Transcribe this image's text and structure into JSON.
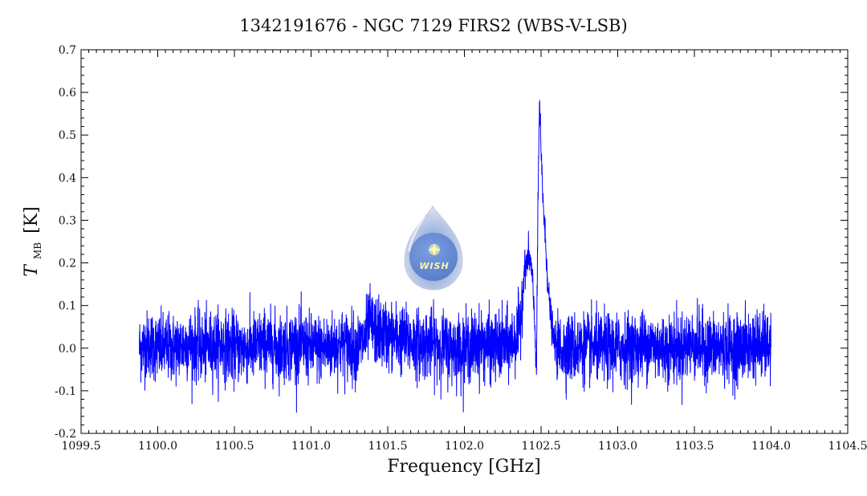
{
  "chart_data": {
    "type": "line",
    "title": "1342191676 - NGC 7129 FIRS2 (WBS-V-LSB)",
    "xlabel": "Frequency [GHz]",
    "ylabel_main": "T",
    "ylabel_sub": "MB",
    "ylabel_unit": "[K]",
    "xlim": [
      1099.5,
      1104.5
    ],
    "ylim": [
      -0.2,
      0.7
    ],
    "x_ticks": [
      1099.5,
      1100.0,
      1100.5,
      1101.0,
      1101.5,
      1102.0,
      1102.5,
      1103.0,
      1103.5,
      1104.0,
      1104.5
    ],
    "x_tick_labels": [
      "1099.5",
      "1100.0",
      "1100.5",
      "1101.0",
      "1101.5",
      "1102.0",
      "1102.5",
      "1103.0",
      "1103.5",
      "1104.0",
      "1104.5"
    ],
    "y_ticks": [
      -0.2,
      -0.1,
      0.0,
      0.1,
      0.2,
      0.3,
      0.4,
      0.5,
      0.6,
      0.7
    ],
    "y_tick_labels": [
      "-0.2",
      "-0.1",
      "0.0",
      "0.1",
      "0.2",
      "0.3",
      "0.4",
      "0.5",
      "0.6",
      "0.7"
    ],
    "grid": false,
    "series": [
      {
        "color": "#0000ff",
        "x": [
          1099.88,
          1099.95,
          1100.0,
          1100.1,
          1100.2,
          1100.3,
          1100.4,
          1100.5,
          1100.6,
          1100.7,
          1100.8,
          1100.9,
          1101.0,
          1101.1,
          1101.2,
          1101.3,
          1101.35,
          1101.38,
          1101.42,
          1101.5,
          1101.6,
          1101.7,
          1101.8,
          1101.9,
          1102.0,
          1102.1,
          1102.2,
          1102.3,
          1102.36,
          1102.39,
          1102.42,
          1102.44,
          1102.46,
          1102.47,
          1102.48,
          1102.49,
          1102.5,
          1102.52,
          1102.55,
          1102.58,
          1102.62,
          1102.7,
          1102.8,
          1102.9,
          1103.0,
          1103.1,
          1103.2,
          1103.3,
          1103.4,
          1103.5,
          1103.6,
          1103.7,
          1103.8,
          1103.9,
          1104.0
        ],
        "y": [
          0.0,
          0.01,
          0.0,
          0.0,
          0.01,
          0.0,
          0.01,
          0.0,
          0.0,
          0.01,
          0.0,
          0.01,
          0.0,
          0.0,
          0.01,
          0.0,
          0.02,
          0.06,
          0.04,
          0.03,
          0.02,
          0.01,
          0.01,
          0.0,
          0.0,
          0.01,
          0.0,
          0.01,
          0.04,
          0.18,
          0.22,
          0.18,
          0.05,
          -0.06,
          0.35,
          0.58,
          0.45,
          0.3,
          0.12,
          0.02,
          0.0,
          0.0,
          0.0,
          0.0,
          0.0,
          0.0,
          0.01,
          0.0,
          0.0,
          0.01,
          0.0,
          0.0,
          0.0,
          0.01,
          0.0
        ],
        "noise_rms": 0.04
      }
    ],
    "logo_text": "WISH"
  }
}
